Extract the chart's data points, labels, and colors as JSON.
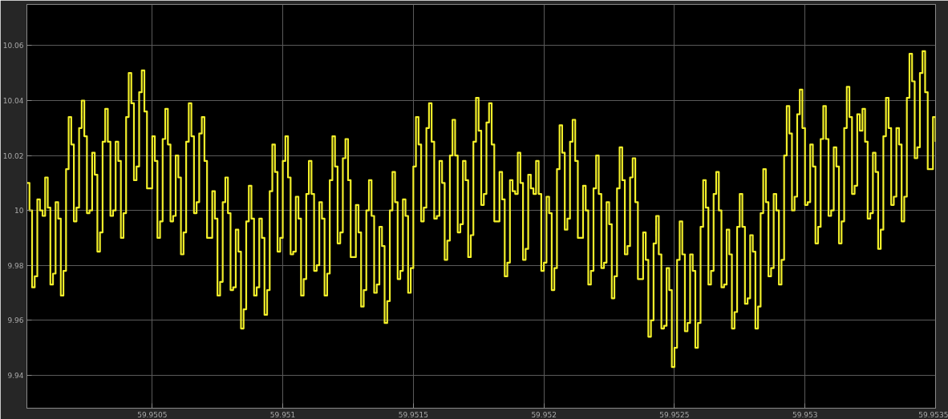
{
  "chart_data": {
    "type": "step",
    "xlim": [
      59.95002,
      59.9535
    ],
    "ylim": [
      9.928,
      10.075
    ],
    "xticks": [
      59.9505,
      59.951,
      59.9515,
      59.952,
      59.9525,
      59.953,
      59.9535
    ],
    "yticks": [
      9.94,
      9.96,
      9.98,
      10,
      10.02,
      10.04,
      10.06
    ],
    "grid": true,
    "series": [
      {
        "color": "#f2ef2a",
        "x": [
          59.95002,
          59.95003,
          59.95004,
          59.95005,
          59.95006,
          59.95007,
          59.95008,
          59.95009,
          59.9501,
          59.95011,
          59.95012,
          59.95013,
          59.95014,
          59.95015,
          59.95016,
          59.95017,
          59.95018,
          59.95019,
          59.9502,
          59.95021,
          59.95022,
          59.95023,
          59.95024,
          59.95025,
          59.95026,
          59.95027,
          59.95028,
          59.95029,
          59.9503,
          59.95031,
          59.95032,
          59.95033,
          59.95034,
          59.95035,
          59.95036,
          59.95037,
          59.95038,
          59.95039,
          59.9504,
          59.95041,
          59.95042,
          59.95043,
          59.95044,
          59.95045,
          59.95046,
          59.95047,
          59.95048,
          59.95049,
          59.9505,
          59.95051,
          59.95052,
          59.95053,
          59.95054,
          59.95055,
          59.95056,
          59.95057,
          59.95058,
          59.95059,
          59.9506,
          59.95061,
          59.95062,
          59.95063,
          59.95064,
          59.95065,
          59.95066,
          59.95067,
          59.95068,
          59.95069,
          59.9507,
          59.95071,
          59.95072,
          59.95073,
          59.95074,
          59.95075,
          59.95076,
          59.95077,
          59.95078,
          59.95079,
          59.9508,
          59.95081,
          59.95082,
          59.95083,
          59.95084,
          59.95085,
          59.95086,
          59.95087,
          59.95088,
          59.95089,
          59.9509,
          59.95091,
          59.95092,
          59.95093,
          59.95094,
          59.95095,
          59.95096,
          59.95097,
          59.95098,
          59.95099,
          59.951,
          59.95101,
          59.95102,
          59.95103,
          59.95104,
          59.95105,
          59.95106,
          59.95107,
          59.95108,
          59.95109,
          59.9511,
          59.95111,
          59.95112,
          59.95113,
          59.95114,
          59.95115,
          59.95116,
          59.95117,
          59.95118,
          59.95119,
          59.9512,
          59.95121,
          59.95122,
          59.95123,
          59.95124,
          59.95125,
          59.95126,
          59.95127,
          59.95128,
          59.95129,
          59.9513,
          59.95131,
          59.95132,
          59.95133,
          59.95134,
          59.95135,
          59.95136,
          59.95137,
          59.95138,
          59.95139,
          59.9514,
          59.95141,
          59.95142,
          59.95143,
          59.95144,
          59.95145,
          59.95146,
          59.95147,
          59.95148,
          59.95149,
          59.9515,
          59.95151,
          59.95152,
          59.95153,
          59.95154,
          59.95155,
          59.95156,
          59.95157,
          59.95158,
          59.95159,
          59.9516,
          59.95161,
          59.95162,
          59.95163,
          59.95164,
          59.95165,
          59.95166,
          59.95167,
          59.95168,
          59.95169,
          59.9517,
          59.95171,
          59.95172,
          59.95173,
          59.95174,
          59.95175,
          59.95176,
          59.95177,
          59.95178,
          59.95179,
          59.9518,
          59.95181,
          59.95182,
          59.95183,
          59.95184,
          59.95185,
          59.95186,
          59.95187,
          59.95188,
          59.95189,
          59.9519,
          59.95191,
          59.95192,
          59.95193,
          59.95194,
          59.95195,
          59.95196,
          59.95197,
          59.95198,
          59.95199,
          59.952,
          59.95201,
          59.95202,
          59.95203,
          59.95204,
          59.95205,
          59.95206,
          59.95207,
          59.95208,
          59.95209,
          59.9521,
          59.95211,
          59.95212,
          59.95213,
          59.95214,
          59.95215,
          59.95216,
          59.95217,
          59.95218,
          59.95219,
          59.9522,
          59.95221,
          59.95222,
          59.95223,
          59.95224,
          59.95225,
          59.95226,
          59.95227,
          59.95228,
          59.95229,
          59.9523,
          59.95231,
          59.95232,
          59.95233,
          59.95234,
          59.95235,
          59.95236,
          59.95237,
          59.95238,
          59.95239,
          59.9524,
          59.95241,
          59.95242,
          59.95243,
          59.95244,
          59.95245,
          59.95246,
          59.95247,
          59.95248,
          59.95249,
          59.9525,
          59.95251,
          59.95252,
          59.95253,
          59.95254,
          59.95255,
          59.95256,
          59.95257,
          59.95258,
          59.95259,
          59.9526,
          59.95261,
          59.95262,
          59.95263,
          59.95264,
          59.95265,
          59.95266,
          59.95267,
          59.95268,
          59.95269,
          59.9527,
          59.95271,
          59.95272,
          59.95273,
          59.95274,
          59.95275,
          59.95276,
          59.95277,
          59.95278,
          59.95279,
          59.9528,
          59.95281,
          59.95282,
          59.95283,
          59.95284,
          59.95285,
          59.95286,
          59.95287,
          59.95288,
          59.95289,
          59.9529,
          59.95291,
          59.95292,
          59.95293,
          59.95294,
          59.95295,
          59.95296,
          59.95297,
          59.95298,
          59.95299,
          59.953,
          59.95301,
          59.95302,
          59.95303,
          59.95304,
          59.95305,
          59.95306,
          59.95307,
          59.95308,
          59.95309,
          59.9531,
          59.95311,
          59.95312,
          59.95313,
          59.95314,
          59.95315,
          59.95316,
          59.95317,
          59.95318,
          59.95319,
          59.9532,
          59.95321,
          59.95322,
          59.95323,
          59.95324,
          59.95325,
          59.95326,
          59.95327,
          59.95328,
          59.95329,
          59.9533,
          59.95331,
          59.95332,
          59.95333,
          59.95334,
          59.95335,
          59.95336,
          59.95337,
          59.95338,
          59.95339,
          59.9534,
          59.95341,
          59.95342,
          59.95343,
          59.95344,
          59.95345,
          59.95346,
          59.95347,
          59.95348,
          59.95349,
          59.9535
        ],
        "values": [
          10.01,
          10.0,
          9.972,
          9.976,
          10.004,
          10.0,
          9.998,
          10.012,
          10.001,
          9.973,
          9.977,
          10.003,
          9.997,
          9.969,
          9.978,
          10.015,
          10.034,
          10.024,
          9.996,
          10.001,
          10.03,
          10.04,
          10.027,
          9.999,
          10.0,
          10.021,
          10.013,
          9.985,
          9.992,
          10.025,
          10.037,
          10.025,
          9.998,
          10.0,
          10.025,
          10.018,
          9.99,
          9.999,
          10.034,
          10.05,
          10.039,
          10.011,
          10.016,
          10.043,
          10.051,
          10.036,
          10.008,
          10.008,
          10.027,
          10.018,
          9.99,
          9.996,
          10.026,
          10.037,
          10.024,
          9.996,
          9.998,
          10.02,
          10.012,
          9.984,
          9.992,
          10.025,
          10.039,
          10.027,
          9.999,
          10.003,
          10.028,
          10.034,
          10.018,
          9.99,
          9.99,
          10.007,
          9.997,
          9.969,
          9.974,
          10.003,
          10.012,
          9.999,
          9.971,
          9.972,
          9.993,
          9.985,
          9.957,
          9.964,
          9.996,
          10.009,
          9.997,
          9.969,
          9.972,
          9.997,
          9.99,
          9.962,
          9.971,
          10.007,
          10.024,
          10.014,
          9.985,
          9.99,
          10.018,
          10.027,
          10.012,
          9.984,
          9.985,
          10.005,
          9.997,
          9.969,
          9.975,
          10.006,
          10.018,
          10.006,
          9.978,
          9.98,
          10.003,
          9.997,
          9.969,
          9.977,
          10.011,
          10.027,
          10.016,
          9.988,
          9.992,
          10.019,
          10.026,
          10.011,
          9.983,
          9.983,
          10.002,
          9.992,
          9.965,
          9.971,
          10.0,
          10.011,
          9.998,
          9.97,
          9.973,
          9.994,
          9.987,
          9.959,
          9.967,
          10.0,
          10.014,
          10.003,
          9.975,
          9.978,
          10.004,
          9.998,
          9.97,
          9.979,
          10.016,
          10.034,
          10.024,
          9.996,
          10.001,
          10.03,
          10.039,
          10.025,
          9.997,
          9.998,
          10.018,
          10.01,
          9.982,
          9.989,
          10.02,
          10.033,
          10.02,
          9.992,
          9.995,
          10.018,
          10.011,
          9.983,
          9.991,
          10.025,
          10.041,
          10.029,
          10.002,
          10.006,
          10.032,
          10.039,
          10.024,
          9.996,
          9.996,
          10.014,
          10.004,
          9.976,
          9.981,
          10.011,
          10.007,
          10.006,
          10.021,
          10.01,
          9.982,
          9.986,
          10.013,
          10.008,
          10.006,
          10.018,
          10.006,
          9.978,
          9.981,
          10.005,
          9.999,
          9.971,
          9.979,
          10.015,
          10.031,
          10.021,
          9.993,
          9.997,
          10.025,
          10.033,
          10.018,
          9.99,
          9.99,
          10.009,
          10.0,
          9.973,
          9.978,
          10.008,
          10.02,
          10.006,
          9.979,
          9.981,
          10.003,
          9.995,
          9.968,
          9.976,
          10.008,
          10.023,
          10.011,
          9.984,
          9.987,
          10.012,
          10.019,
          10.003,
          9.975,
          9.975,
          9.992,
          9.982,
          9.954,
          9.96,
          9.988,
          9.998,
          9.984,
          9.957,
          9.958,
          9.979,
          9.971,
          9.943,
          9.95,
          9.982,
          9.996,
          9.984,
          9.956,
          9.959,
          9.984,
          9.978,
          9.95,
          9.959,
          9.994,
          10.011,
          10.001,
          9.973,
          9.978,
          10.006,
          10.014,
          10.0,
          9.972,
          9.973,
          9.993,
          9.984,
          9.957,
          9.963,
          9.994,
          10.006,
          9.994,
          9.966,
          9.968,
          9.991,
          9.985,
          9.957,
          9.965,
          9.999,
          10.015,
          10.003,
          9.976,
          9.979,
          10.006,
          10.0,
          9.973,
          9.982,
          10.02,
          10.038,
          10.028,
          10.0,
          10.005,
          10.035,
          10.044,
          10.03,
          10.002,
          10.003,
          10.024,
          10.016,
          9.988,
          9.994,
          10.026,
          10.038,
          10.026,
          9.998,
          10.0,
          10.023,
          10.016,
          9.988,
          9.996,
          10.03,
          10.045,
          10.034,
          10.006,
          10.009,
          10.035,
          10.029,
          10.037,
          10.025,
          9.997,
          9.999,
          10.021,
          10.014,
          9.986,
          9.993,
          10.027,
          10.041,
          10.03,
          10.002,
          10.005,
          10.03,
          10.024,
          9.996,
          10.005,
          10.041,
          10.057,
          10.047,
          10.019,
          10.023,
          10.05,
          10.058,
          10.043,
          10.015,
          10.015,
          10.034,
          10.025
        ]
      }
    ]
  }
}
